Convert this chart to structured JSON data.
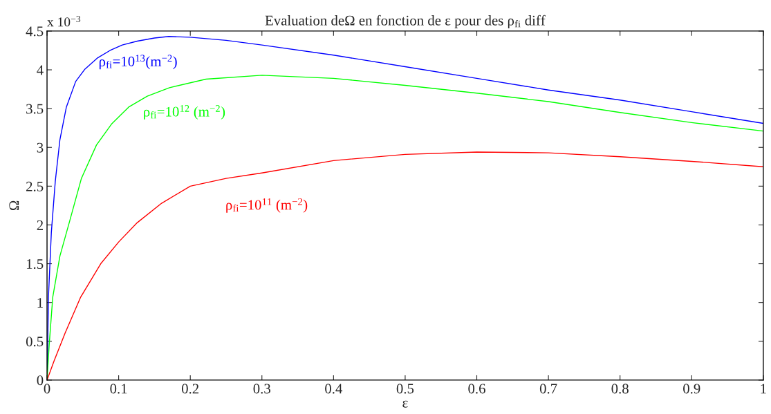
{
  "chart_data": {
    "type": "line",
    "title": "Evaluation deΩ en fonction de ε pour des ρ$_{fi}$ diff",
    "xlabel": "ε",
    "ylabel": "Ω",
    "annotations": [
      "x 10$^{−3}$"
    ],
    "series": [
      {
        "name": "ρ$_{fi}$=10$^{13}$(m$^{−2}$)",
        "color": "#0000ff",
        "x": [
          0,
          0.001,
          0.002,
          0.006,
          0.0115,
          0.018,
          0.027,
          0.04,
          0.053,
          0.07,
          0.088,
          0.105,
          0.126,
          0.15,
          0.17,
          0.2,
          0.25,
          0.3,
          0.4,
          0.5,
          0.6,
          0.7,
          0.8,
          0.9,
          1.0
        ],
        "values": [
          0,
          0.5,
          1.07,
          1.9,
          2.56,
          3.1,
          3.52,
          3.85,
          4.01,
          4.15,
          4.25,
          4.32,
          4.37,
          4.41,
          4.43,
          4.42,
          4.38,
          4.32,
          4.19,
          4.04,
          3.89,
          3.74,
          3.61,
          3.46,
          3.31
        ]
      },
      {
        "name": "ρ$_{fi}$=10$^{12}$ (m$^{−2}$)",
        "color": "#00ff00",
        "x": [
          0,
          0.003,
          0.008,
          0.018,
          0.031,
          0.048,
          0.069,
          0.09,
          0.114,
          0.14,
          0.171,
          0.222,
          0.3,
          0.4,
          0.5,
          0.6,
          0.7,
          0.8,
          0.9,
          1.0
        ],
        "values": [
          0,
          0.45,
          1.07,
          1.6,
          2.03,
          2.6,
          3.03,
          3.3,
          3.52,
          3.66,
          3.77,
          3.88,
          3.93,
          3.89,
          3.8,
          3.7,
          3.59,
          3.45,
          3.32,
          3.21
        ]
      },
      {
        "name": "ρ$_{fi}$=10$^{11}$ (m$^{−2}$)",
        "color": "#ff0000",
        "x": [
          0,
          0.01,
          0.025,
          0.047,
          0.075,
          0.1,
          0.126,
          0.16,
          0.2,
          0.25,
          0.3,
          0.4,
          0.5,
          0.6,
          0.7,
          0.8,
          0.9,
          1.0
        ],
        "values": [
          0,
          0.25,
          0.6,
          1.07,
          1.5,
          1.78,
          2.03,
          2.28,
          2.5,
          2.6,
          2.67,
          2.83,
          2.91,
          2.94,
          2.93,
          2.88,
          2.82,
          2.75
        ]
      }
    ],
    "xlim": [
      0,
      1
    ],
    "ylim": [
      0,
      4.5
    ],
    "xticks": [
      0,
      0.1,
      0.2,
      0.3,
      0.4,
      0.5,
      0.6,
      0.7,
      0.8,
      0.9,
      1
    ],
    "yticks": [
      0,
      0.5,
      1,
      1.5,
      2,
      2.5,
      3,
      3.5,
      4,
      4.5
    ],
    "grid": false,
    "legend": false,
    "marker": "none",
    "line_style": "solid"
  }
}
